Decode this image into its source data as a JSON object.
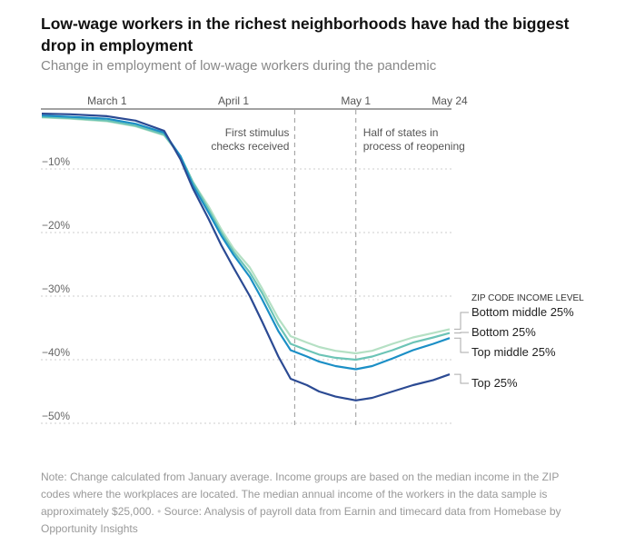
{
  "title": "Low-wage workers in the richest neighborhoods have had the biggest drop in employment",
  "subtitle": "Change in employment of low-wage workers during the pandemic",
  "note": "Note: Change calculated from January average. Income groups are based on the median income in the ZIP codes where the workplaces are located. The median annual income of the workers in the data sample is approximately $25,000.",
  "source": "Source: Analysis of payroll data from Earnin and timecard data from Homebase by Opportunity Insights",
  "chart_data": {
    "type": "line",
    "x_ticks": [
      {
        "date": "2020-03-01",
        "label": "March 1"
      },
      {
        "date": "2020-04-01",
        "label": "April 1"
      },
      {
        "date": "2020-05-01",
        "label": "May 1"
      },
      {
        "date": "2020-05-24",
        "label": "May 24"
      }
    ],
    "y_ticks": [
      {
        "value": -10,
        "label": "−10%"
      },
      {
        "value": -20,
        "label": "−20%"
      },
      {
        "value": -30,
        "label": "−30%"
      },
      {
        "value": -40,
        "label": "−40%"
      },
      {
        "value": -50,
        "label": "−50%"
      }
    ],
    "xlim": [
      "2020-02-14",
      "2020-05-24"
    ],
    "ylim": [
      -52,
      1.5
    ],
    "grid": "horizontal dotted",
    "legend_title": "ZIP CODE INCOME LEVEL",
    "annotations": [
      {
        "date": "2020-04-16",
        "label": [
          "First stimulus",
          "checks received"
        ]
      },
      {
        "date": "2020-05-01",
        "label": [
          "Half of states in",
          "process of reopening"
        ]
      }
    ],
    "x": [
      "2020-02-14",
      "2020-02-21",
      "2020-03-01",
      "2020-03-08",
      "2020-03-15",
      "2020-03-19",
      "2020-03-22",
      "2020-03-26",
      "2020-03-29",
      "2020-04-01",
      "2020-04-05",
      "2020-04-08",
      "2020-04-12",
      "2020-04-15",
      "2020-04-19",
      "2020-04-22",
      "2020-04-26",
      "2020-05-01",
      "2020-05-05",
      "2020-05-10",
      "2020-05-15",
      "2020-05-20",
      "2020-05-24"
    ],
    "series": [
      {
        "name": "Bottom middle 25%",
        "color": "#b5e0c4",
        "values": [
          -1.9,
          -2.1,
          -2.5,
          -3.3,
          -4.7,
          -8,
          -12,
          -16,
          -19.5,
          -22.5,
          -25.5,
          -28.8,
          -33.5,
          -36.3,
          -37.3,
          -38,
          -38.6,
          -39,
          -38.6,
          -37.5,
          -36.5,
          -35.8,
          -35.2
        ]
      },
      {
        "name": "Bottom 25%",
        "color": "#6cc4b6",
        "values": [
          -1.8,
          -2.0,
          -2.4,
          -3.2,
          -4.6,
          -8,
          -12,
          -16.5,
          -20,
          -23,
          -26.3,
          -29.5,
          -34.5,
          -37.5,
          -38.5,
          -39.2,
          -39.7,
          -40,
          -39.5,
          -38.5,
          -37.3,
          -36.5,
          -35.8
        ]
      },
      {
        "name": "Top middle 25%",
        "color": "#1b8fc6",
        "values": [
          -1.6,
          -1.8,
          -2.1,
          -2.9,
          -4.3,
          -8,
          -12.5,
          -17,
          -20.5,
          -23.5,
          -27,
          -30.5,
          -35.5,
          -38.5,
          -39.5,
          -40.3,
          -41,
          -41.5,
          -41,
          -39.8,
          -38.5,
          -37.5,
          -36.6
        ]
      },
      {
        "name": "Top 25%",
        "color": "#2b4a93",
        "values": [
          -1.3,
          -1.4,
          -1.7,
          -2.4,
          -4.0,
          -8.5,
          -13,
          -18,
          -22,
          -25.5,
          -30,
          -34,
          -39.5,
          -43,
          -44,
          -45,
          -45.8,
          -46.4,
          -46,
          -45,
          -44,
          -43.2,
          -42.3
        ]
      }
    ]
  }
}
